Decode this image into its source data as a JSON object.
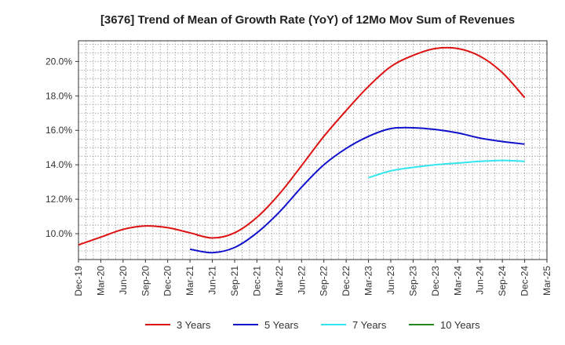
{
  "chart_data": {
    "type": "line",
    "title": "[3676]  Trend of Mean of Growth Rate (YoY) of 12Mo Mov Sum of Revenues",
    "xlabel": "",
    "ylabel": "",
    "ylim": [
      8.5,
      21.2
    ],
    "y_ticks": [
      10.0,
      12.0,
      14.0,
      16.0,
      18.0,
      20.0
    ],
    "y_tick_labels": [
      "10.0%",
      "12.0%",
      "14.0%",
      "16.0%",
      "18.0%",
      "20.0%"
    ],
    "x_tick_labels": [
      "Dec-19",
      "Mar-20",
      "Jun-20",
      "Sep-20",
      "Dec-20",
      "Mar-21",
      "Jun-21",
      "Sep-21",
      "Dec-21",
      "Mar-22",
      "Jun-22",
      "Sep-22",
      "Dec-22",
      "Mar-23",
      "Jun-23",
      "Sep-23",
      "Dec-23",
      "Mar-24",
      "Jun-24",
      "Sep-24",
      "Dec-24",
      "Mar-25"
    ],
    "grid": true,
    "legend_position": "bottom",
    "series": [
      {
        "name": "3 Years",
        "color": "#dd1111",
        "points": [
          [
            0,
            9.35
          ],
          [
            1,
            9.8
          ],
          [
            2,
            10.25
          ],
          [
            3,
            10.45
          ],
          [
            4,
            10.35
          ],
          [
            5,
            10.05
          ],
          [
            6,
            9.75
          ],
          [
            7,
            10.05
          ],
          [
            8,
            10.95
          ],
          [
            9,
            12.3
          ],
          [
            10,
            13.95
          ],
          [
            11,
            15.65
          ],
          [
            12,
            17.15
          ],
          [
            13,
            18.55
          ],
          [
            14,
            19.7
          ],
          [
            15,
            20.35
          ],
          [
            16,
            20.75
          ],
          [
            17,
            20.75
          ],
          [
            18,
            20.3
          ],
          [
            19,
            19.35
          ],
          [
            20,
            17.9
          ]
        ]
      },
      {
        "name": "5 Years",
        "color": "#1111cc",
        "points": [
          [
            5,
            9.1
          ],
          [
            6,
            8.9
          ],
          [
            7,
            9.2
          ],
          [
            8,
            10.05
          ],
          [
            9,
            11.25
          ],
          [
            10,
            12.7
          ],
          [
            11,
            14.0
          ],
          [
            12,
            14.95
          ],
          [
            13,
            15.65
          ],
          [
            14,
            16.1
          ],
          [
            15,
            16.15
          ],
          [
            16,
            16.05
          ],
          [
            17,
            15.85
          ],
          [
            18,
            15.55
          ],
          [
            19,
            15.35
          ],
          [
            20,
            15.2
          ]
        ]
      },
      {
        "name": "7 Years",
        "color": "#33e6ee",
        "points": [
          [
            13,
            13.25
          ],
          [
            14,
            13.65
          ],
          [
            15,
            13.85
          ],
          [
            16,
            14.0
          ],
          [
            17,
            14.1
          ],
          [
            18,
            14.2
          ],
          [
            19,
            14.25
          ],
          [
            20,
            14.2
          ]
        ]
      },
      {
        "name": "10 Years",
        "color": "#228822",
        "points": []
      }
    ]
  }
}
